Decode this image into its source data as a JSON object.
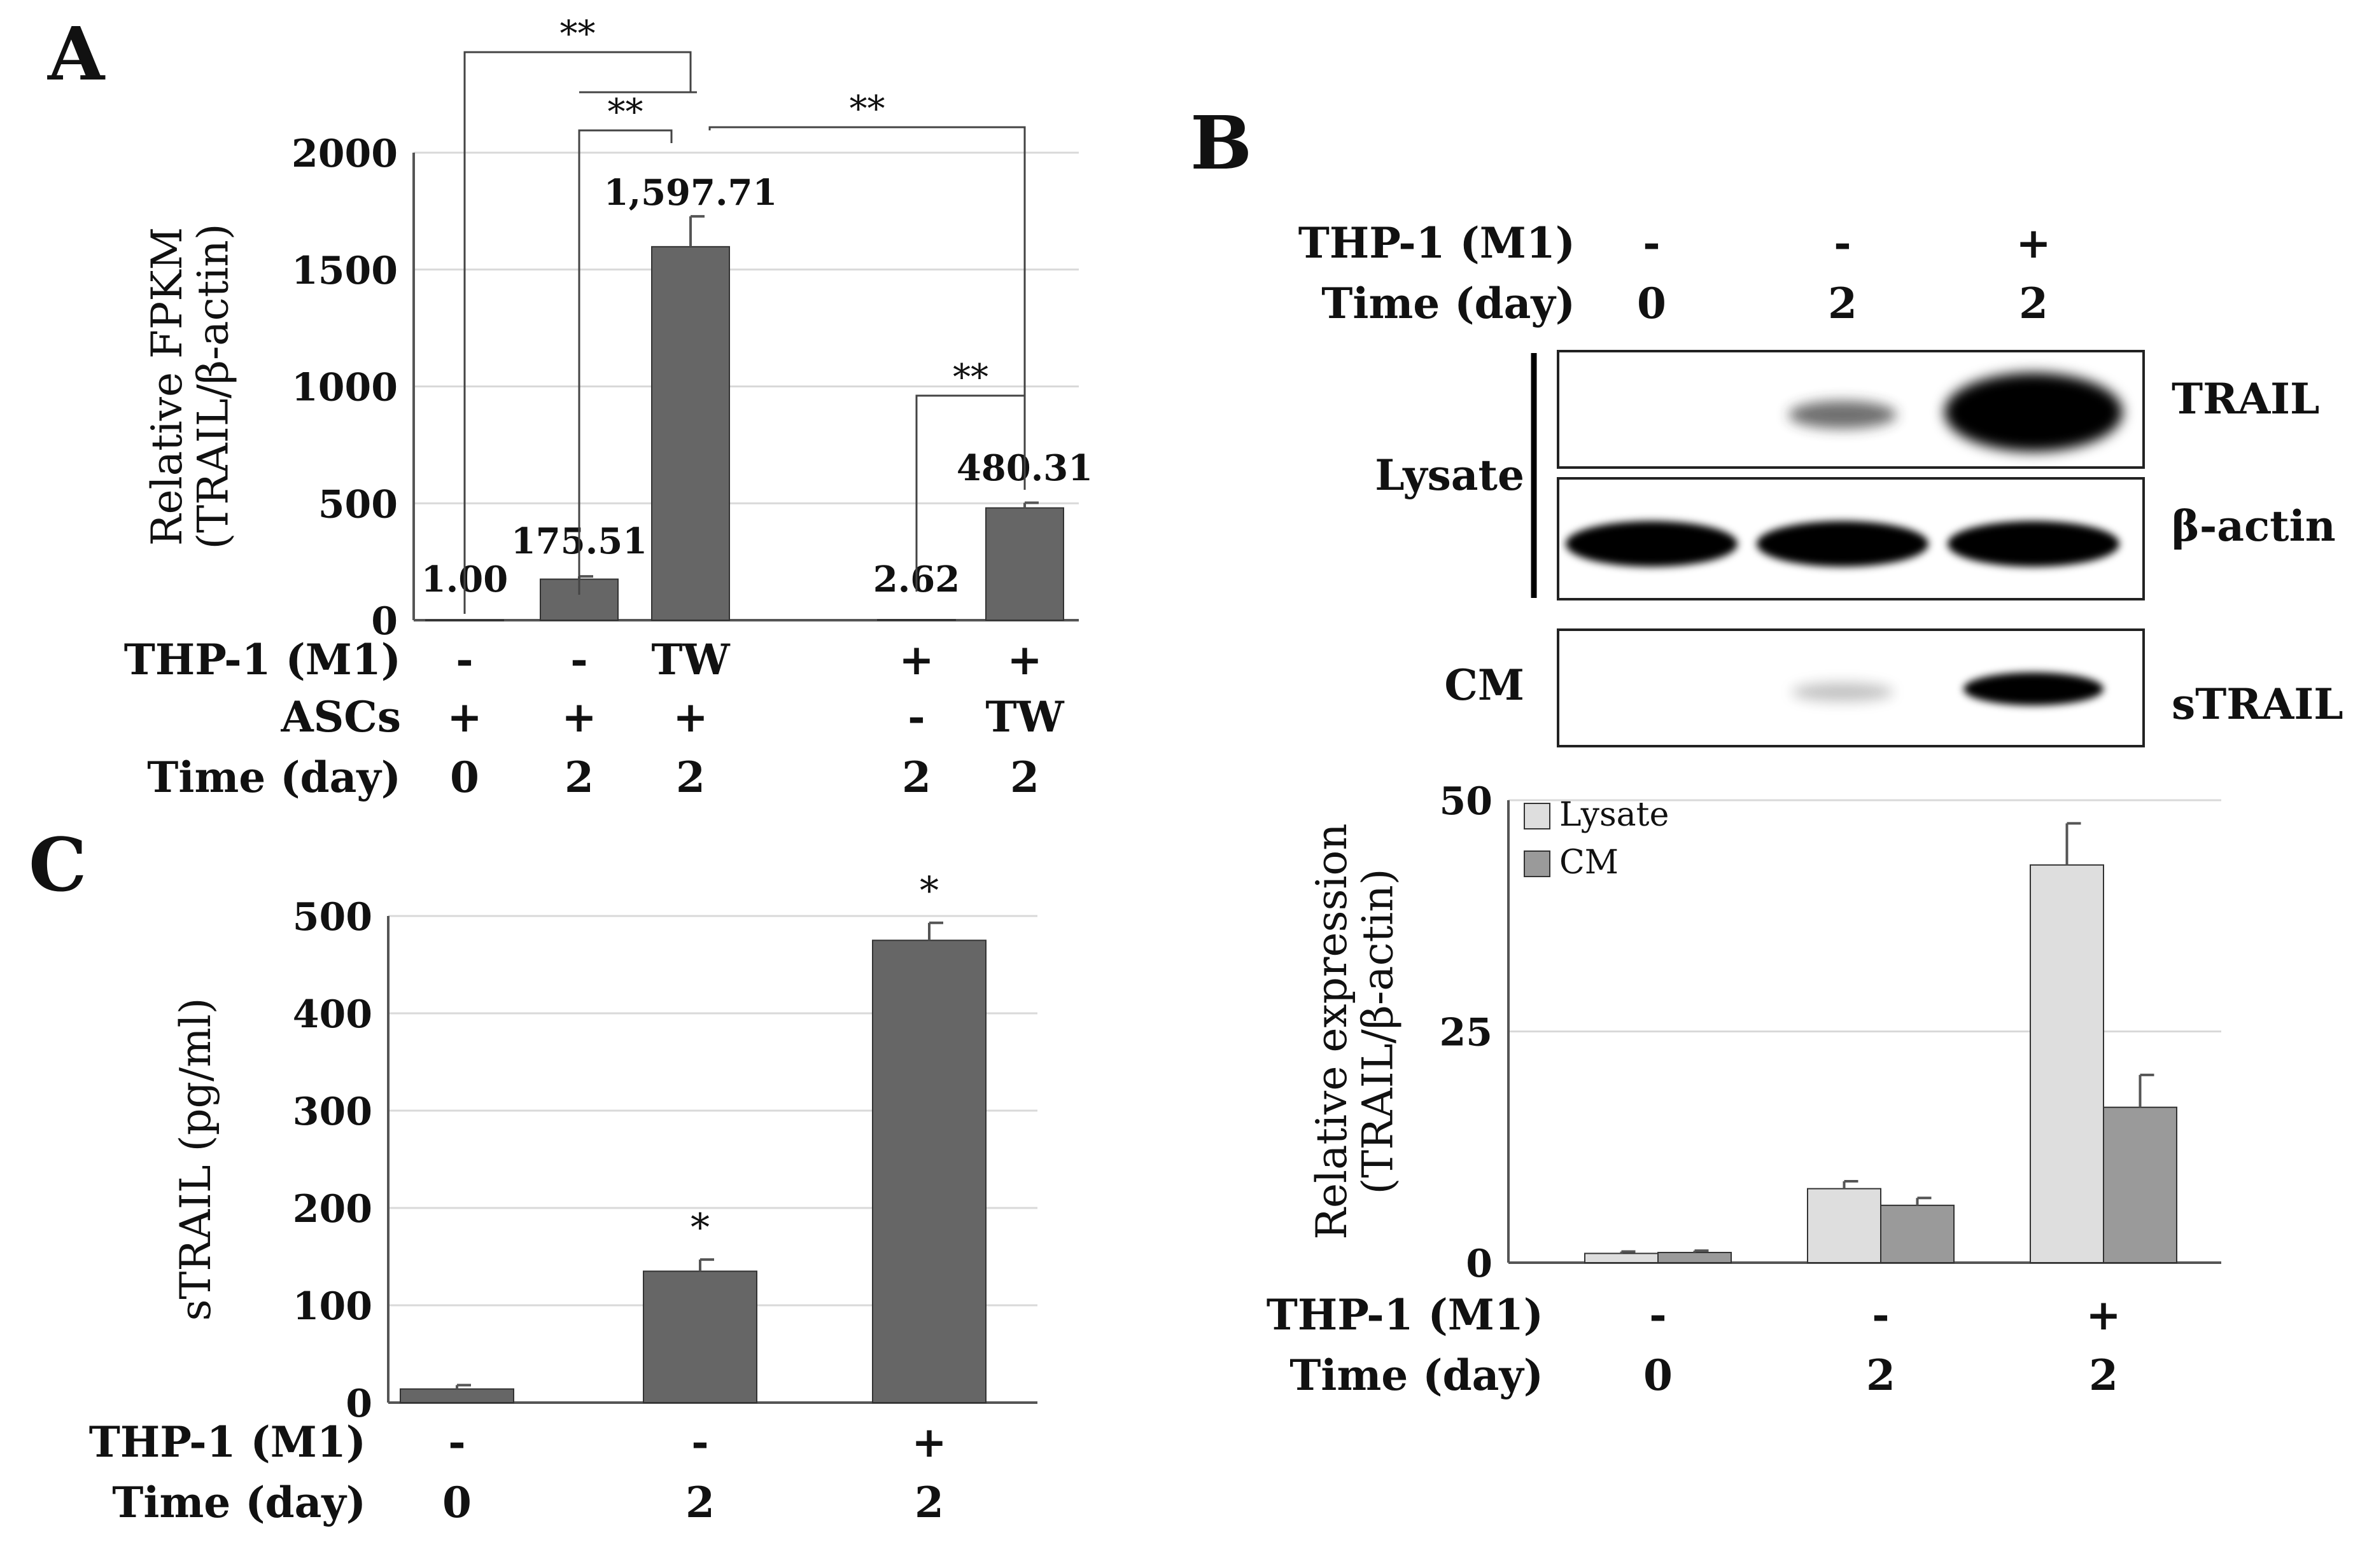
{
  "panel_labels": {
    "a": "A",
    "b": "B",
    "c": "C"
  },
  "colors": {
    "bar": "#666666",
    "lysate": "#dedede",
    "cm": "#9a9a9a",
    "grid": "#d9d9d9",
    "axis": "#555555"
  },
  "panel_b_blot": {
    "condition_rows": [
      {
        "label": "THP-1 (M1)",
        "values": [
          "-",
          "-",
          "+"
        ]
      },
      {
        "label": "Time (day)",
        "values": [
          "0",
          "2",
          "2"
        ]
      }
    ],
    "group_labels": [
      "Lysate",
      "CM"
    ],
    "band_labels": [
      "TRAIL",
      "β-actin",
      "sTRAIL"
    ]
  },
  "chart_data": [
    {
      "panel": "A",
      "type": "bar",
      "ylabel": "Relative FPKM",
      "ylabel2": "(TRAIL/β-actin)",
      "ylim": [
        0,
        2000
      ],
      "yticks": [
        0,
        500,
        1000,
        1500,
        2000
      ],
      "grid": true,
      "values": [
        1.0,
        175.51,
        1597.71,
        2.62,
        480.31
      ],
      "errors": [
        0,
        12,
        130,
        0,
        22
      ],
      "data_labels": [
        "1.00",
        "175.51",
        "1,597.71",
        "2.62",
        "480.31"
      ],
      "condition_rows": [
        {
          "label": "THP-1 (M1)",
          "values": [
            "-",
            "-",
            "TW",
            "+",
            "+"
          ]
        },
        {
          "label": "ASCs",
          "values": [
            "+",
            "+",
            "+",
            "-",
            "TW"
          ]
        },
        {
          "label": "Time (day)",
          "values": [
            "0",
            "2",
            "2",
            "2",
            "2"
          ]
        }
      ],
      "significance": [
        {
          "from": 1,
          "to": 3,
          "label": "**"
        },
        {
          "from": 2,
          "to": 3,
          "label": "**"
        },
        {
          "from": 3,
          "to": 5,
          "label": "**"
        },
        {
          "from": 4,
          "to": 5,
          "label": "**"
        }
      ]
    },
    {
      "panel": "B",
      "type": "bar",
      "ylabel": "Relative expression",
      "ylabel2": "(TRAIL/β-actin)",
      "ylim": [
        0,
        50
      ],
      "yticks": [
        0,
        25,
        50
      ],
      "grid": true,
      "legend": "top-left",
      "series": [
        {
          "name": "Lysate",
          "values": [
            1,
            8,
            43
          ],
          "errors": [
            0.2,
            0.8,
            4.5
          ]
        },
        {
          "name": "CM",
          "values": [
            1.1,
            6.2,
            16.8
          ],
          "errors": [
            0.2,
            0.8,
            3.5
          ]
        }
      ],
      "condition_rows": [
        {
          "label": "THP-1 (M1)",
          "values": [
            "-",
            "-",
            "+"
          ]
        },
        {
          "label": "Time (day)",
          "values": [
            "0",
            "2",
            "2"
          ]
        }
      ]
    },
    {
      "panel": "C",
      "type": "bar",
      "ylabel": "sTRAIL (pg/ml)",
      "ylim": [
        0,
        500
      ],
      "yticks": [
        0,
        100,
        200,
        300,
        400,
        500
      ],
      "grid": true,
      "values": [
        14,
        135,
        475
      ],
      "errors": [
        4,
        12,
        18
      ],
      "stars": [
        "",
        "*",
        "*"
      ],
      "condition_rows": [
        {
          "label": "THP-1 (M1)",
          "values": [
            "-",
            "-",
            "+"
          ]
        },
        {
          "label": "Time (day)",
          "values": [
            "0",
            "2",
            "2"
          ]
        }
      ]
    }
  ]
}
